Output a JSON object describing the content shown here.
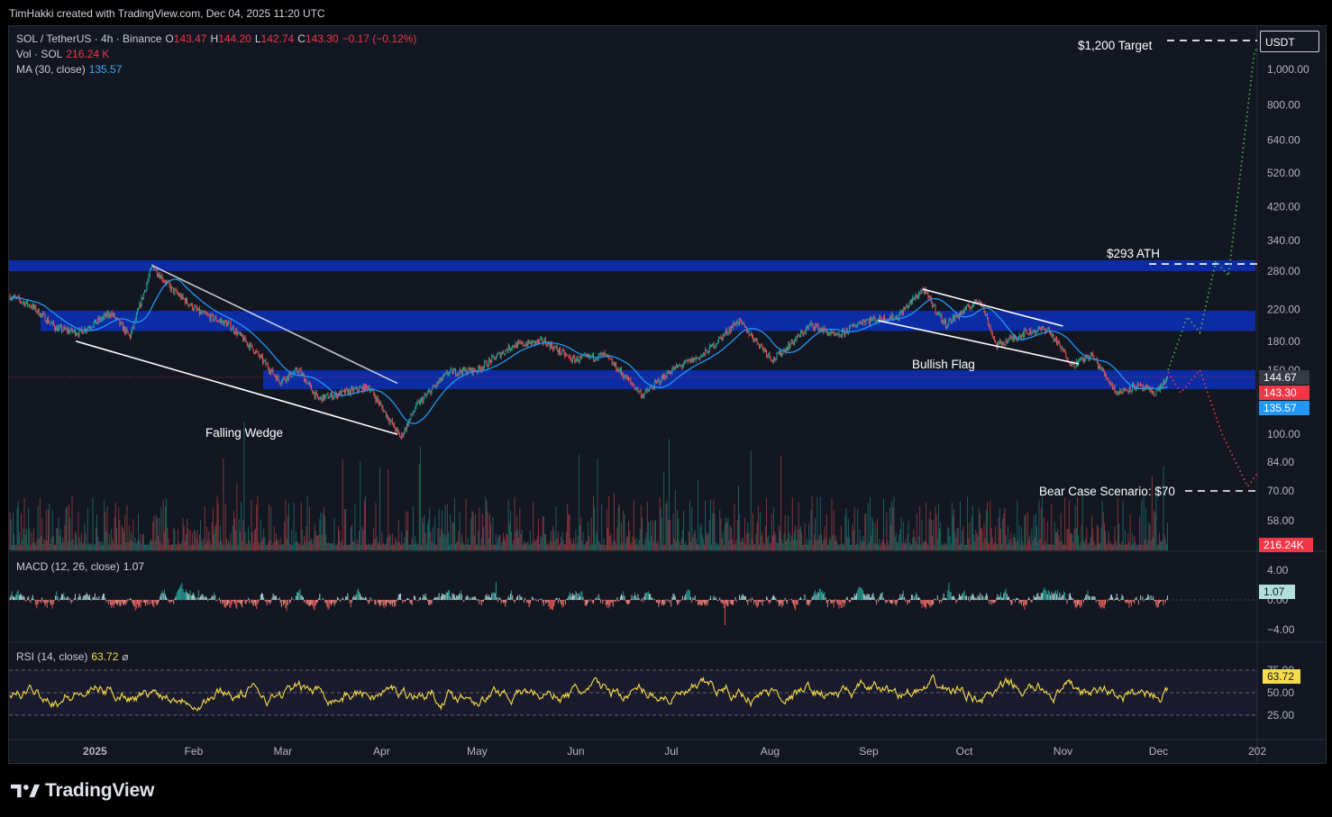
{
  "header": {
    "text": "TimHakki created with TradingView.com, Dec 04, 2025 11:20 UTC"
  },
  "legend": {
    "symbol": "SOL / TetherUS · 4h · Binance",
    "open_label": "O",
    "open": "143.47",
    "high_label": "H",
    "high": "144.20",
    "low_label": "L",
    "low": "142.74",
    "close_label": "C",
    "close": "143.30",
    "change": "−0.17 (−0.12%)",
    "vol_label": "Vol · SOL",
    "vol_value": "216.24 K",
    "ma_label": "MA (30, close)",
    "ma_value": "135.57"
  },
  "macd_legend": {
    "label": "MACD (12, 26, close)",
    "value": "1.07"
  },
  "rsi_legend": {
    "label": "RSI (14, close)",
    "value": "63.72",
    "extra": "⌀"
  },
  "price_axis": {
    "currency": "USDT",
    "labels": [
      "1,000.00",
      "800.00",
      "640.00",
      "520.00",
      "420.00",
      "340.00",
      "280.00",
      "220.00",
      "180.00",
      "150.00",
      "100.00",
      "84.00",
      "70.00",
      "58.00"
    ],
    "values": [
      1000,
      800,
      640,
      520,
      420,
      340,
      280,
      220,
      180,
      150,
      100,
      84,
      70,
      58
    ]
  },
  "badges": {
    "last_price": "144.67",
    "close": "143.30",
    "ma": "135.57",
    "volume": "216.24K",
    "macd": "1.07",
    "rsi": "63.72"
  },
  "macd_axis": {
    "labels": [
      "4.00",
      "0.00",
      "−4.00"
    ]
  },
  "rsi_axis": {
    "labels": [
      "75.00",
      "50.00",
      "25.00"
    ]
  },
  "time_axis": {
    "labels": [
      "2025",
      "Feb",
      "Mar",
      "Apr",
      "May",
      "Jun",
      "Jul",
      "Aug",
      "Sep",
      "Oct",
      "Nov",
      "Dec",
      "202"
    ]
  },
  "annotations": {
    "target": "$1,200 Target",
    "ath": "$293 ATH",
    "bear": "Bear Case Scenario: $70",
    "falling_wedge": "Falling Wedge",
    "bullish_flag": "Bullish Flag"
  },
  "colors": {
    "up": "#26a69a",
    "down": "#ef5350",
    "ma": "#2196f3",
    "zone": "#0d2fb0",
    "rsi": "#f7dc4a",
    "bull_path": "#4caf50",
    "bear_path": "#f23645"
  },
  "footer": {
    "brand": "TradingView"
  },
  "chart_data": [
    {
      "type": "candlestick",
      "symbol": "SOL / TetherUS",
      "interval": "4h",
      "exchange": "Binance",
      "scale": "log",
      "x_range": [
        "2024-12-05",
        "2026-01-01"
      ],
      "price_path": [
        {
          "date": "2024-12-05",
          "price": 240
        },
        {
          "date": "2024-12-12",
          "price": 225
        },
        {
          "date": "2024-12-20",
          "price": 195
        },
        {
          "date": "2024-12-27",
          "price": 190
        },
        {
          "date": "2025-01-06",
          "price": 215
        },
        {
          "date": "2025-01-12",
          "price": 185
        },
        {
          "date": "2025-01-19",
          "price": 290
        },
        {
          "date": "2025-01-25",
          "price": 250
        },
        {
          "date": "2025-02-03",
          "price": 215
        },
        {
          "date": "2025-02-12",
          "price": 200
        },
        {
          "date": "2025-02-20",
          "price": 170
        },
        {
          "date": "2025-02-28",
          "price": 140
        },
        {
          "date": "2025-03-06",
          "price": 150
        },
        {
          "date": "2025-03-12",
          "price": 125
        },
        {
          "date": "2025-03-20",
          "price": 130
        },
        {
          "date": "2025-03-28",
          "price": 135
        },
        {
          "date": "2025-04-07",
          "price": 98
        },
        {
          "date": "2025-04-12",
          "price": 120
        },
        {
          "date": "2025-04-22",
          "price": 148
        },
        {
          "date": "2025-05-01",
          "price": 150
        },
        {
          "date": "2025-05-12",
          "price": 175
        },
        {
          "date": "2025-05-22",
          "price": 180
        },
        {
          "date": "2025-05-31",
          "price": 160
        },
        {
          "date": "2025-06-10",
          "price": 165
        },
        {
          "date": "2025-06-22",
          "price": 128
        },
        {
          "date": "2025-07-01",
          "price": 150
        },
        {
          "date": "2025-07-11",
          "price": 165
        },
        {
          "date": "2025-07-22",
          "price": 205
        },
        {
          "date": "2025-08-02",
          "price": 160
        },
        {
          "date": "2025-08-14",
          "price": 200
        },
        {
          "date": "2025-08-22",
          "price": 185
        },
        {
          "date": "2025-08-30",
          "price": 205
        },
        {
          "date": "2025-09-10",
          "price": 210
        },
        {
          "date": "2025-09-18",
          "price": 250
        },
        {
          "date": "2025-09-25",
          "price": 200
        },
        {
          "date": "2025-10-06",
          "price": 235
        },
        {
          "date": "2025-10-11",
          "price": 175
        },
        {
          "date": "2025-10-20",
          "price": 190
        },
        {
          "date": "2025-10-27",
          "price": 195
        },
        {
          "date": "2025-11-04",
          "price": 155
        },
        {
          "date": "2025-11-10",
          "price": 165
        },
        {
          "date": "2025-11-18",
          "price": 130
        },
        {
          "date": "2025-11-24",
          "price": 136
        },
        {
          "date": "2025-11-30",
          "price": 130
        },
        {
          "date": "2025-12-04",
          "price": 143.3
        }
      ],
      "last_close": 143.3,
      "moving_average": {
        "name": "MA (30, close)",
        "last": 135.57
      },
      "volume_last": "216.24K",
      "zones": [
        {
          "low": 280,
          "high": 300
        },
        {
          "low": 192,
          "high": 218
        },
        {
          "low": 133,
          "high": 150
        }
      ],
      "levels": [
        {
          "label": "$1,200 Target",
          "price": 1200
        },
        {
          "label": "$293 ATH",
          "price": 293
        },
        {
          "label": "Bear Case Scenario: $70",
          "price": 70
        }
      ],
      "patterns": [
        {
          "label": "Falling Wedge",
          "upper": [
            [
              "2025-01-19",
              290
            ],
            [
              "2025-04-06",
              138
            ]
          ],
          "lower": [
            [
              "2024-12-26",
              180
            ],
            [
              "2025-04-06",
              100
            ]
          ]
        },
        {
          "label": "Bullish Flag",
          "upper": [
            [
              "2025-09-18",
              250
            ],
            [
              "2025-11-01",
              198
            ]
          ],
          "lower": [
            [
              "2025-09-04",
              205
            ],
            [
              "2025-11-06",
              156
            ]
          ]
        }
      ],
      "scenarios": {
        "bull": [
          [
            "2025-12-04",
            150
          ],
          [
            "2025-12-10",
            210
          ],
          [
            "2025-12-14",
            190
          ],
          [
            "2025-12-19",
            298
          ],
          [
            "2025-12-23",
            272
          ],
          [
            "2025-12-31",
            1100
          ],
          [
            "2026-01-01",
            1150
          ]
        ],
        "bear": [
          [
            "2025-12-04",
            148
          ],
          [
            "2025-12-08",
            130
          ],
          [
            "2025-12-14",
            150
          ],
          [
            "2025-12-21",
            100
          ],
          [
            "2025-12-29",
            72
          ],
          [
            "2026-01-01",
            78
          ]
        ]
      }
    },
    {
      "type": "bar",
      "name": "MACD (12, 26, close)",
      "last": 1.07,
      "ylim": [
        -4,
        4
      ]
    },
    {
      "type": "line",
      "name": "RSI (14, close)",
      "last": 63.72,
      "bands": [
        25,
        50,
        75
      ],
      "ylim": [
        10,
        90
      ]
    }
  ]
}
